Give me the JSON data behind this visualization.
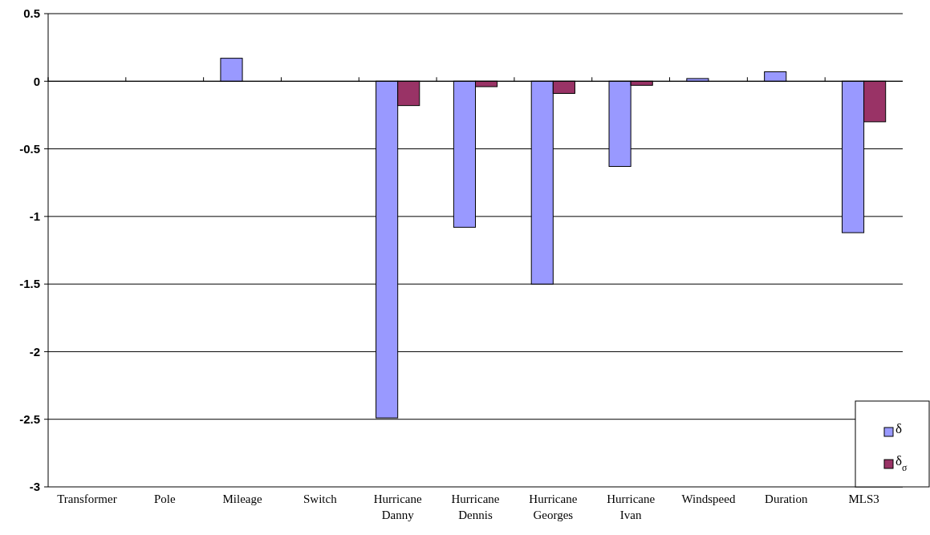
{
  "chart_data": {
    "type": "bar",
    "categories": [
      "Transformer",
      "Pole",
      "Mileage",
      "Switch",
      "Hurricane Danny",
      "Hurricane Dennis",
      "Hurricane Georges",
      "Hurricane Ivan",
      "Windspeed",
      "Duration",
      "MLS3"
    ],
    "series": [
      {
        "name": "δ",
        "color": "#9999ff",
        "values": [
          null,
          null,
          0.17,
          null,
          -2.49,
          -1.08,
          -1.5,
          -0.63,
          0.02,
          0.07,
          -1.12
        ]
      },
      {
        "name": "δ$_{σ}$",
        "color": "#993366",
        "values": [
          0,
          0,
          0,
          0,
          -0.18,
          -0.04,
          -0.09,
          -0.03,
          0,
          0,
          -0.3
        ]
      }
    ],
    "ylim": [
      -3,
      0.5
    ],
    "yticks": [
      {
        "value": -3,
        "label": "-3"
      },
      {
        "value": -2.5,
        "label": "-2.5"
      },
      {
        "value": -2,
        "label": "-2"
      },
      {
        "value": -1.5,
        "label": "-1.5"
      },
      {
        "value": -1,
        "label": "-1"
      },
      {
        "value": -0.5,
        "label": "-0.5"
      },
      {
        "value": 0,
        "label": "0"
      },
      {
        "value": 0.5,
        "label": "0.5"
      }
    ],
    "grid": "y",
    "legend": "bottom right"
  }
}
